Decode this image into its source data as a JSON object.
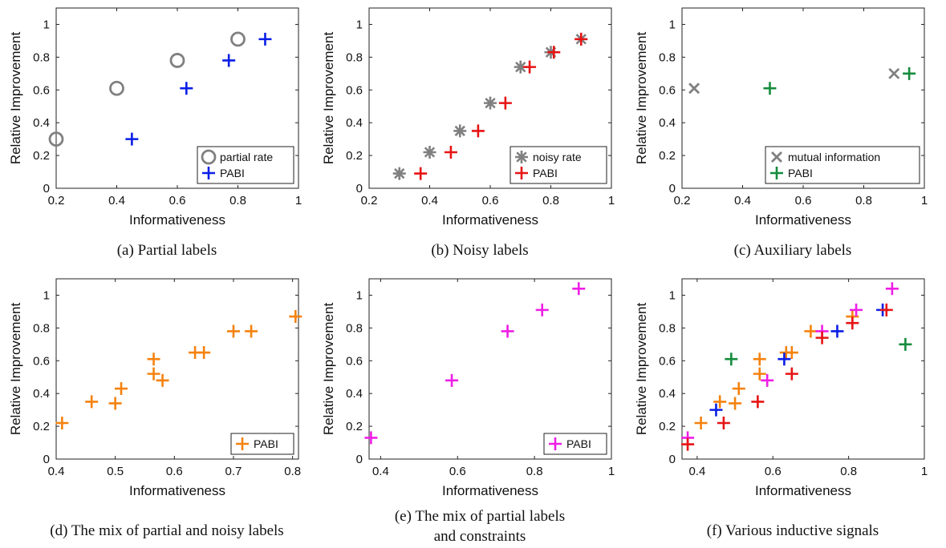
{
  "chart_data": [
    {
      "type": "scatter",
      "caption": "(a) Partial labels",
      "xlabel": "Informativeness",
      "ylabel": "Relative Improvement",
      "xlim": [
        0.2,
        1.0
      ],
      "ylim": [
        0,
        1.1
      ],
      "xticks": [
        "0.2",
        "0.4",
        "0.6",
        "0.8",
        "1"
      ],
      "yticks": [
        "0",
        "0.2",
        "0.4",
        "0.6",
        "0.8",
        "1"
      ],
      "legend": "bottom-right",
      "series": [
        {
          "name": "partial rate",
          "marker": "circle",
          "color": "#808080",
          "points": [
            [
              0.2,
              0.3
            ],
            [
              0.4,
              0.61
            ],
            [
              0.6,
              0.78
            ],
            [
              0.8,
              0.91
            ]
          ]
        },
        {
          "name": "PABI",
          "marker": "plus",
          "color": "#0a1ee6",
          "points": [
            [
              0.45,
              0.3
            ],
            [
              0.63,
              0.61
            ],
            [
              0.77,
              0.78
            ],
            [
              0.89,
              0.91
            ]
          ]
        }
      ]
    },
    {
      "type": "scatter",
      "caption": "(b) Noisy labels",
      "xlabel": "Informativeness",
      "ylabel": "Relative Improvement",
      "xlim": [
        0.2,
        1.0
      ],
      "ylim": [
        0,
        1.1
      ],
      "xticks": [
        "0.2",
        "0.4",
        "0.6",
        "0.8",
        "1"
      ],
      "yticks": [
        "0",
        "0.2",
        "0.4",
        "0.6",
        "0.8",
        "1"
      ],
      "legend": "bottom-right",
      "series": [
        {
          "name": "noisy rate",
          "marker": "asterisk",
          "color": "#808080",
          "points": [
            [
              0.3,
              0.09
            ],
            [
              0.4,
              0.22
            ],
            [
              0.5,
              0.35
            ],
            [
              0.6,
              0.52
            ],
            [
              0.7,
              0.74
            ],
            [
              0.8,
              0.83
            ],
            [
              0.9,
              0.91
            ]
          ]
        },
        {
          "name": "PABI",
          "marker": "plus",
          "color": "#e61414",
          "points": [
            [
              0.37,
              0.09
            ],
            [
              0.47,
              0.22
            ],
            [
              0.56,
              0.35
            ],
            [
              0.65,
              0.52
            ],
            [
              0.73,
              0.74
            ],
            [
              0.81,
              0.83
            ],
            [
              0.9,
              0.91
            ]
          ]
        }
      ]
    },
    {
      "type": "scatter",
      "caption": "(c) Auxiliary labels",
      "xlabel": "Informativeness",
      "ylabel": "Relative Improvement",
      "xlim": [
        0.2,
        1.0
      ],
      "ylim": [
        0,
        1.1
      ],
      "xticks": [
        "0.2",
        "0.4",
        "0.6",
        "0.8",
        "1"
      ],
      "yticks": [
        "0",
        "0.2",
        "0.4",
        "0.6",
        "0.8",
        "1"
      ],
      "legend": "bottom-right",
      "series": [
        {
          "name": "mutual information",
          "marker": "cross",
          "color": "#808080",
          "points": [
            [
              0.24,
              0.61
            ],
            [
              0.9,
              0.7
            ]
          ]
        },
        {
          "name": "PABI",
          "marker": "plus",
          "color": "#148c3c",
          "points": [
            [
              0.49,
              0.61
            ],
            [
              0.95,
              0.7
            ]
          ]
        }
      ]
    },
    {
      "type": "scatter",
      "caption": "(d) The mix of partial and noisy labels",
      "xlabel": "Informativeness",
      "ylabel": "Relative Improvement",
      "xlim": [
        0.4,
        0.81
      ],
      "ylim": [
        0,
        1.1
      ],
      "xticks": [
        "0.4",
        "0.5",
        "0.6",
        "0.7",
        "0.8"
      ],
      "yticks": [
        "0",
        "0.2",
        "0.4",
        "0.6",
        "0.8",
        "1"
      ],
      "legend": "bottom-right",
      "series": [
        {
          "name": "PABI",
          "marker": "plus",
          "color": "#f5820f",
          "points": [
            [
              0.41,
              0.22
            ],
            [
              0.46,
              0.35
            ],
            [
              0.5,
              0.34
            ],
            [
              0.51,
              0.43
            ],
            [
              0.565,
              0.61
            ],
            [
              0.565,
              0.52
            ],
            [
              0.58,
              0.48
            ],
            [
              0.635,
              0.65
            ],
            [
              0.65,
              0.65
            ],
            [
              0.7,
              0.78
            ],
            [
              0.73,
              0.78
            ],
            [
              0.805,
              0.87
            ]
          ]
        }
      ]
    },
    {
      "type": "scatter",
      "caption": "(e) The mix of partial labels and constraints",
      "caption_lines": [
        "(e) The mix of partial labels",
        "and constraints"
      ],
      "xlabel": "Informativeness",
      "ylabel": "Relative Improvement",
      "xlim": [
        0.37,
        1.0
      ],
      "ylim": [
        0,
        1.1
      ],
      "xticks": [
        "0.4",
        "0.6",
        "0.8",
        "1"
      ],
      "yticks": [
        "0",
        "0.2",
        "0.4",
        "0.6",
        "0.8",
        "1"
      ],
      "legend": "bottom-right",
      "series": [
        {
          "name": "PABI",
          "marker": "plus",
          "color": "#ee1ee6",
          "points": [
            [
              0.375,
              0.13
            ],
            [
              0.585,
              0.48
            ],
            [
              0.73,
              0.78
            ],
            [
              0.82,
              0.91
            ],
            [
              0.915,
              1.04
            ]
          ]
        }
      ]
    },
    {
      "type": "scatter",
      "caption": "(f) Various inductive signals",
      "xlabel": "Informativeness",
      "ylabel": "Relative Improvement",
      "xlim": [
        0.36,
        1.0
      ],
      "ylim": [
        0,
        1.1
      ],
      "xticks": [
        "0.4",
        "0.6",
        "0.8",
        "1"
      ],
      "yticks": [
        "0",
        "0.2",
        "0.4",
        "0.6",
        "0.8",
        "1"
      ],
      "legend": "none",
      "series": [
        {
          "marker": "plus",
          "color": "#f5820f",
          "points": [
            [
              0.41,
              0.22
            ],
            [
              0.46,
              0.35
            ],
            [
              0.5,
              0.34
            ],
            [
              0.51,
              0.43
            ],
            [
              0.565,
              0.61
            ],
            [
              0.565,
              0.52
            ],
            [
              0.635,
              0.65
            ],
            [
              0.65,
              0.65
            ],
            [
              0.7,
              0.78
            ],
            [
              0.81,
              0.87
            ]
          ]
        },
        {
          "marker": "plus",
          "color": "#ee1ee6",
          "points": [
            [
              0.375,
              0.13
            ],
            [
              0.585,
              0.48
            ],
            [
              0.73,
              0.78
            ],
            [
              0.82,
              0.91
            ],
            [
              0.915,
              1.04
            ]
          ]
        },
        {
          "marker": "plus",
          "color": "#0a1ee6",
          "points": [
            [
              0.45,
              0.3
            ],
            [
              0.63,
              0.61
            ],
            [
              0.77,
              0.78
            ],
            [
              0.89,
              0.91
            ]
          ]
        },
        {
          "marker": "plus",
          "color": "#e61414",
          "points": [
            [
              0.375,
              0.09
            ],
            [
              0.47,
              0.22
            ],
            [
              0.56,
              0.35
            ],
            [
              0.65,
              0.52
            ],
            [
              0.73,
              0.74
            ],
            [
              0.81,
              0.83
            ],
            [
              0.9,
              0.91
            ]
          ]
        },
        {
          "marker": "plus",
          "color": "#148c3c",
          "points": [
            [
              0.49,
              0.61
            ],
            [
              0.95,
              0.7
            ]
          ]
        }
      ]
    }
  ]
}
